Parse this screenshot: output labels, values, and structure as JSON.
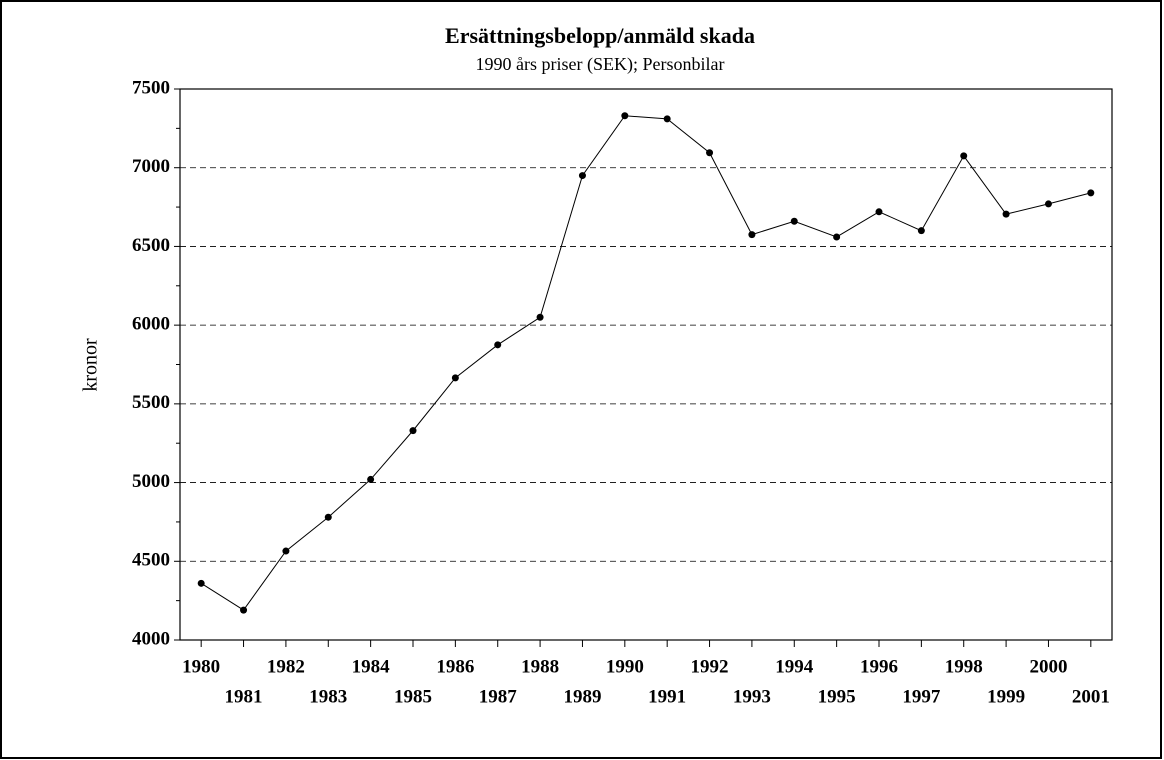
{
  "chart_data": {
    "type": "line",
    "title": "Ersättningsbelopp/anmäld skada",
    "subtitle": "1990 års priser (SEK); Personbilar",
    "y_label": "kronor",
    "x": [
      1980,
      1981,
      1982,
      1983,
      1984,
      1985,
      1986,
      1987,
      1988,
      1989,
      1990,
      1991,
      1992,
      1993,
      1994,
      1995,
      1996,
      1997,
      1998,
      1999,
      2000,
      2001
    ],
    "series": [
      {
        "color": "#000000",
        "values": [
          4360,
          4190,
          4565,
          4780,
          5020,
          5330,
          5665,
          5875,
          6050,
          6950,
          7330,
          7310,
          7095,
          6575,
          6660,
          6560,
          6720,
          6600,
          7075,
          6705,
          6770,
          6840
        ]
      }
    ],
    "xlim": [
      1979.5,
      2001.5
    ],
    "xticks": [
      1980,
      1981,
      1982,
      1983,
      1984,
      1985,
      1986,
      1987,
      1988,
      1989,
      1990,
      1991,
      1992,
      1993,
      1994,
      1995,
      1996,
      1997,
      1998,
      1999,
      2000,
      2001
    ],
    "ylim": [
      4000,
      7500
    ],
    "yticks": [
      4000,
      4500,
      5000,
      5500,
      6000,
      6500,
      7000,
      7500
    ],
    "yminorticks": [
      4250,
      4750,
      5250,
      5750,
      6250,
      6750,
      7250
    ],
    "grid": true
  }
}
